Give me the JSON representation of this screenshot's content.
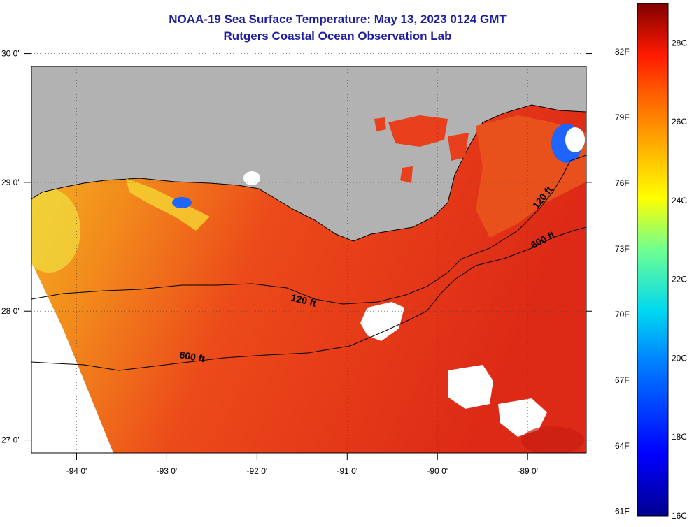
{
  "title": {
    "line1": "NOAA-19 Sea Surface Temperature:  May 13, 2023 0124 GMT",
    "line2": "Rutgers Coastal Ocean Observation Lab"
  },
  "map": {
    "lon_range": [
      -94.5,
      -88.35
    ],
    "lat_range": [
      26.9,
      29.9
    ],
    "lon_ticks": [
      {
        "value": -94,
        "label": "-94 0'"
      },
      {
        "value": -93,
        "label": "-93 0'"
      },
      {
        "value": -92,
        "label": "-92 0'"
      },
      {
        "value": -91,
        "label": "-91 0'"
      },
      {
        "value": -90,
        "label": "-90 0'"
      },
      {
        "value": -89,
        "label": "-89 0'"
      }
    ],
    "lat_ticks": [
      {
        "value": 27,
        "label": "27 0'"
      },
      {
        "value": 28,
        "label": "28 0'"
      },
      {
        "value": 29,
        "label": "29 0'"
      },
      {
        "value": 30,
        "label": "30 0'"
      }
    ],
    "contour_labels": [
      "120 ft",
      "600 ft",
      "120 ft",
      "600 ft"
    ],
    "colors": {
      "land": "#b2b2b2",
      "sea_warm": "#e8321a",
      "sea_cool": "#f2a61e",
      "cloud": "#ffffff",
      "contour": "#000000"
    }
  },
  "colorbar": {
    "range_c": [
      16,
      29
    ],
    "f_labels": [
      "82F",
      "79F",
      "76F",
      "73F",
      "70F",
      "67F",
      "64F",
      "61F"
    ],
    "c_labels": [
      "28C",
      "26C",
      "24C",
      "22C",
      "20C",
      "18C",
      "16C"
    ]
  }
}
